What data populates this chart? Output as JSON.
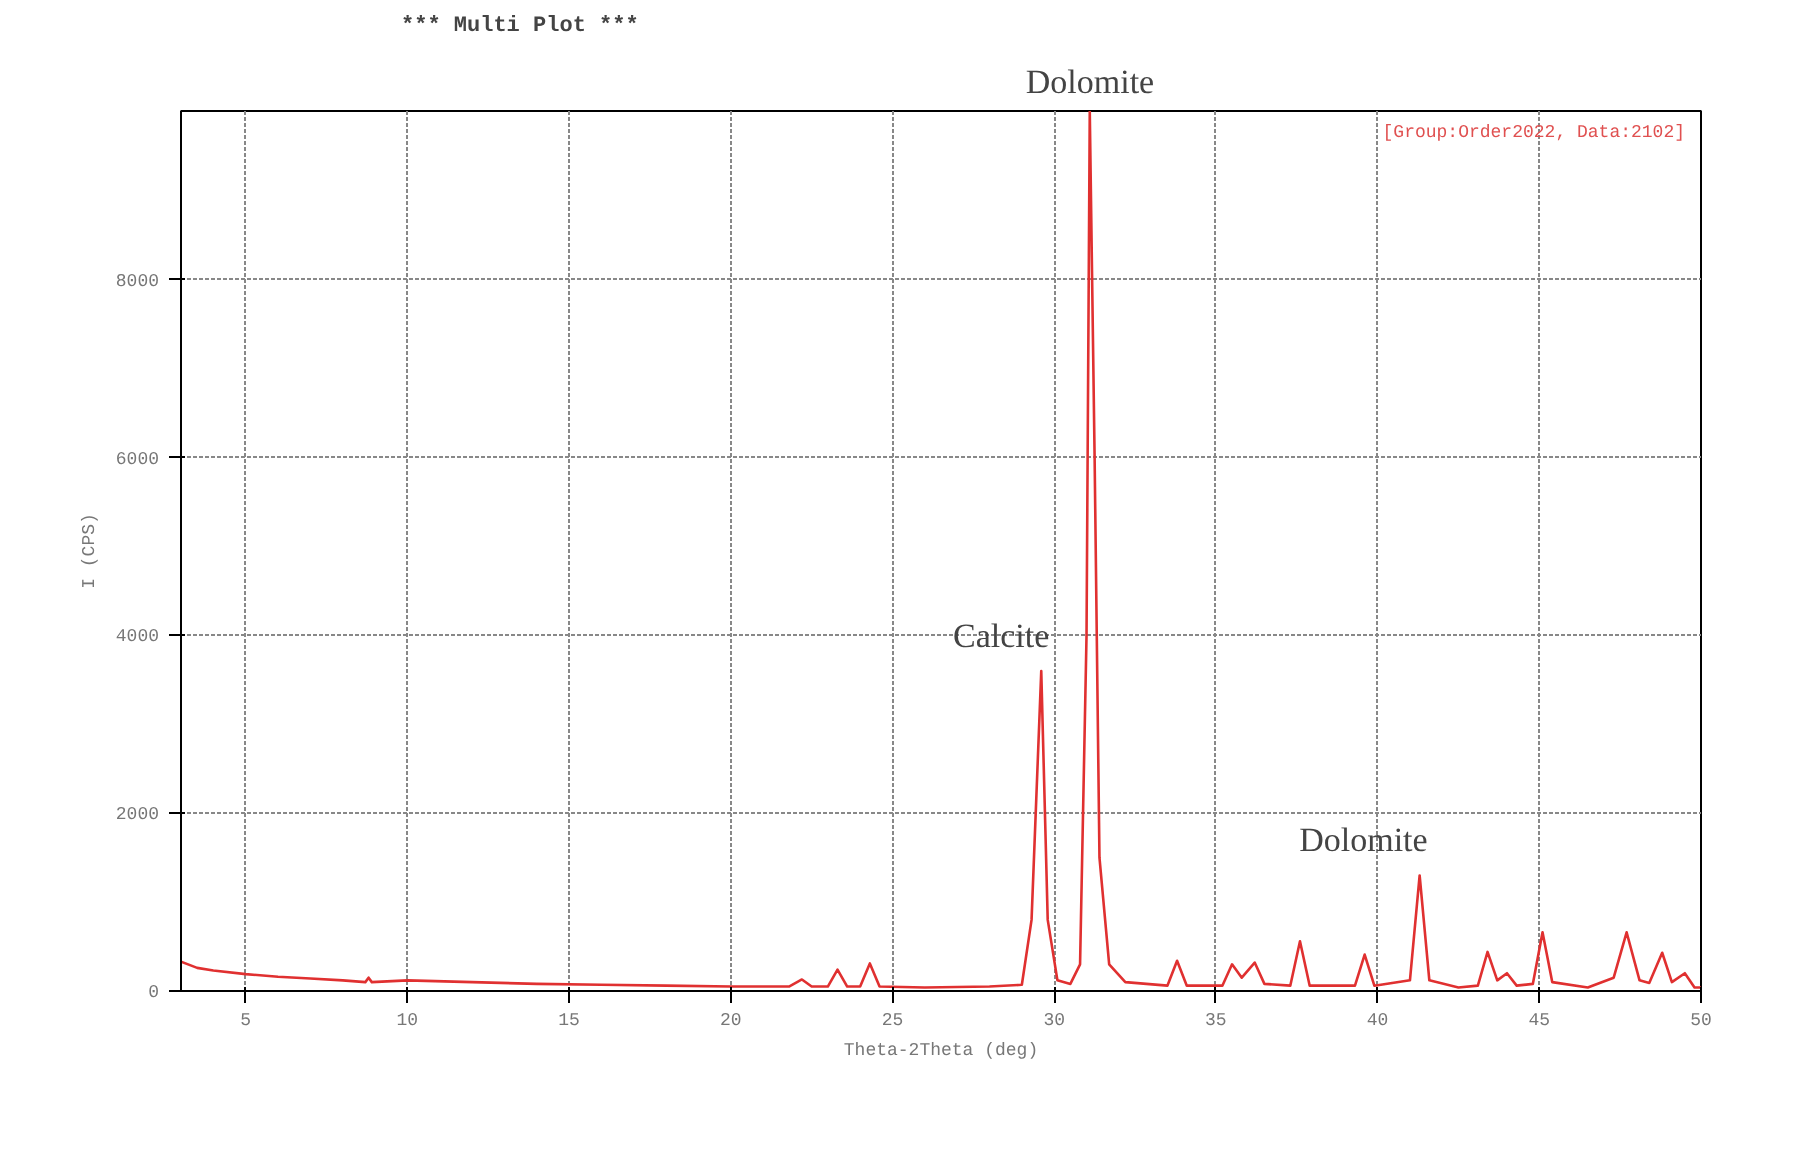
{
  "chart_data": {
    "type": "line",
    "title": "***   Multi Plot   ***",
    "xlabel": "Theta-2Theta (deg)",
    "ylabel": "I (CPS)",
    "xlim": [
      3,
      50
    ],
    "ylim": [
      0,
      9900
    ],
    "xticks": [
      5,
      10,
      15,
      20,
      25,
      30,
      35,
      40,
      45,
      50
    ],
    "yticks": [
      0,
      2000,
      4000,
      6000,
      8000
    ],
    "grid": true,
    "annotations": [
      "[Group:Order2022, Data:2102]",
      {
        "text": "Calcite",
        "x": 29.6,
        "y": 3600
      },
      {
        "text": "Dolomite",
        "x": 31.1,
        "y": 9900
      },
      {
        "text": "Dolomite",
        "x": 41.3,
        "y": 1300
      }
    ],
    "series": [
      {
        "color": "#e03030",
        "x": [
          3,
          3.5,
          4,
          5,
          6,
          7,
          8,
          8.7,
          8.8,
          8.9,
          10,
          12,
          14,
          16,
          18,
          20,
          21.8,
          22.2,
          22.5,
          23.0,
          23.3,
          23.6,
          24.0,
          24.3,
          24.6,
          26,
          28,
          29.0,
          29.3,
          29.6,
          29.8,
          30.1,
          30.5,
          30.8,
          31.0,
          31.1,
          31.25,
          31.4,
          31.7,
          32.2,
          33.5,
          33.8,
          34.1,
          35.2,
          35.5,
          35.8,
          36.2,
          36.5,
          37.3,
          37.6,
          37.9,
          39.3,
          39.6,
          39.9,
          41.0,
          41.3,
          41.6,
          42.5,
          43.1,
          43.4,
          43.7,
          44.0,
          44.3,
          44.8,
          45.1,
          45.4,
          46.5,
          47.3,
          47.7,
          48.1,
          48.4,
          48.8,
          49.1,
          49.5,
          49.8,
          50
        ],
        "values": [
          330,
          260,
          230,
          190,
          160,
          140,
          120,
          100,
          150,
          100,
          120,
          100,
          80,
          70,
          60,
          50,
          50,
          130,
          50,
          50,
          240,
          50,
          50,
          310,
          50,
          40,
          50,
          70,
          800,
          3600,
          800,
          120,
          80,
          300,
          4000,
          9900,
          6000,
          1500,
          300,
          100,
          60,
          340,
          60,
          60,
          300,
          150,
          320,
          80,
          60,
          560,
          60,
          60,
          410,
          60,
          120,
          1300,
          120,
          40,
          60,
          440,
          120,
          200,
          60,
          80,
          660,
          100,
          40,
          150,
          660,
          120,
          90,
          430,
          100,
          200,
          40,
          40
        ]
      }
    ]
  }
}
